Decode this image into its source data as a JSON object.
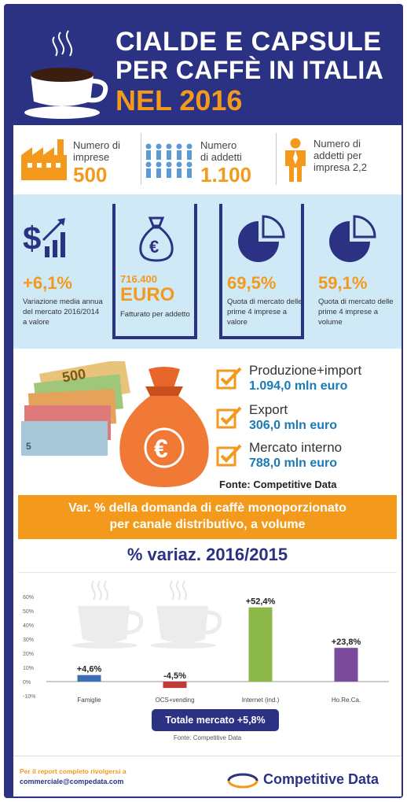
{
  "header": {
    "title_line1": "CIALDE E CAPSULE",
    "title_line2": "PER CAFFÈ IN ITALIA",
    "title_line3": "NEL 2016"
  },
  "stats": [
    {
      "label_line1": "Numero di",
      "label_line2": "imprese",
      "value": "500",
      "icon": "factory-icon"
    },
    {
      "label_line1": "Numero",
      "label_line2": "di addetti",
      "value": "1.100",
      "icon": "people-group-icon"
    },
    {
      "label_line1": "Numero di",
      "label_line2": "addetti per",
      "label_line3": "impresa 2,2",
      "icon": "person-icon"
    }
  ],
  "kpis": [
    {
      "value": "+6,1%",
      "desc": "Variazione media annua del mercato 2016/2014 a valore",
      "icon": "dollar-growth-icon"
    },
    {
      "value_line1": "716.400",
      "value_line2": "EURO",
      "desc": "Fatturato per addetto",
      "icon": "euro-bag-icon"
    },
    {
      "value": "69,5%",
      "desc": "Quota di mercato delle prime 4 imprese a valore",
      "icon": "pie-icon"
    },
    {
      "value": "59,1%",
      "desc": "Quota di mercato delle prime 4 imprese a volume",
      "icon": "pie-icon"
    }
  ],
  "money": {
    "items": [
      {
        "label": "Produzione+import",
        "value": "1.094,0 mln euro"
      },
      {
        "label": "Export",
        "value": "306,0 mln euro"
      },
      {
        "label": "Mercato interno",
        "value": "788,0 mln euro"
      }
    ],
    "source": "Fonte: Competitive Data"
  },
  "banner": {
    "line1": "Var. % della domanda di caffè monoporzionato",
    "line2": "per canale distributivo, a volume"
  },
  "subtitle": "% variaz. 2016/2015",
  "chart_data": {
    "type": "bar",
    "categories": [
      "Famiglie",
      "OCS+vending",
      "Internet (ind.)",
      "Ho.Re.Ca."
    ],
    "values": [
      4.6,
      -4.5,
      52.4,
      23.8
    ],
    "value_labels": [
      "+4,6%",
      "-4,5%",
      "+52,4%",
      "+23,8%"
    ],
    "colors": [
      "#3a6fb5",
      "#c0393b",
      "#8cb84a",
      "#7a4b9a"
    ],
    "y_ticks": [
      "60%",
      "50%",
      "40%",
      "30%",
      "20%",
      "10%",
      "0%",
      "-10%"
    ],
    "ylim": [
      -10,
      60
    ],
    "grid": false
  },
  "totale": "Totale mercato +5,8%",
  "chart_source": "Fonte: Competitive Data",
  "footer": {
    "line1": "Per il report completo rivolgersi a",
    "line2": "commerciale@compedata.com",
    "brand": "Competitive Data"
  },
  "colors": {
    "navy": "#2b3283",
    "orange": "#f39a1c",
    "light_blue": "#cfe9f7",
    "value_blue": "#1a7ab5"
  }
}
